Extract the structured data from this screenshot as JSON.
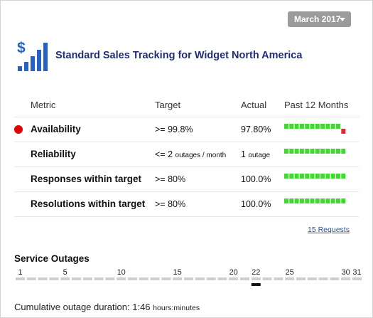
{
  "month_selector": {
    "label": "March 2017",
    "icon": "caret-down-icon"
  },
  "header": {
    "title": "Standard Sales Tracking for Widget North America",
    "logo_icon": "dollar-bar-chart-icon"
  },
  "table": {
    "columns": [
      "Metric",
      "Target",
      "Actual",
      "Past 12 Months"
    ],
    "rows": [
      {
        "metric": "Availability",
        "target": ">= 99.8%",
        "actual": "97.80%",
        "status": "alert",
        "past_12_months": [
          "ok",
          "ok",
          "ok",
          "ok",
          "ok",
          "ok",
          "ok",
          "ok",
          "ok",
          "ok",
          "ok",
          "fail"
        ]
      },
      {
        "metric": "Reliability",
        "target_value": "<= 2",
        "target_unit": "outages / month",
        "actual_value": "1",
        "actual_unit": "outage",
        "status": "ok",
        "past_12_months": [
          "ok",
          "ok",
          "ok",
          "ok",
          "ok",
          "ok",
          "ok",
          "ok",
          "ok",
          "ok",
          "ok",
          "ok"
        ]
      },
      {
        "metric": "Responses within target",
        "target": ">= 80%",
        "actual": "100.0%",
        "status": "ok",
        "past_12_months": [
          "ok",
          "ok",
          "ok",
          "ok",
          "ok",
          "ok",
          "ok",
          "ok",
          "ok",
          "ok",
          "ok",
          "ok"
        ]
      },
      {
        "metric": "Resolutions within target",
        "target": ">= 80%",
        "actual": "100.0%",
        "status": "ok",
        "past_12_months": [
          "ok",
          "ok",
          "ok",
          "ok",
          "ok",
          "ok",
          "ok",
          "ok",
          "ok",
          "ok",
          "ok",
          "ok"
        ]
      }
    ]
  },
  "requests_link": "15 Requests",
  "service_outages": {
    "title": "Service Outages",
    "days_in_month": 31,
    "day_labels": [
      "1",
      "5",
      "10",
      "15",
      "20",
      "22",
      "25",
      "30",
      "31"
    ],
    "outage_days": [
      22
    ]
  },
  "cumulative": {
    "label": "Cumulative outage duration:",
    "value": "1:46",
    "unit": "hours:minutes"
  },
  "colors": {
    "ok": "#3ddc2c",
    "fail": "#e8262a",
    "alert_dot": "#e00000",
    "title": "#1f2e7a",
    "logo": "#2461c9",
    "month_btn": "#9b9b9b",
    "timeline_track": "#cfcfcf",
    "outage_marker": "#111111"
  }
}
